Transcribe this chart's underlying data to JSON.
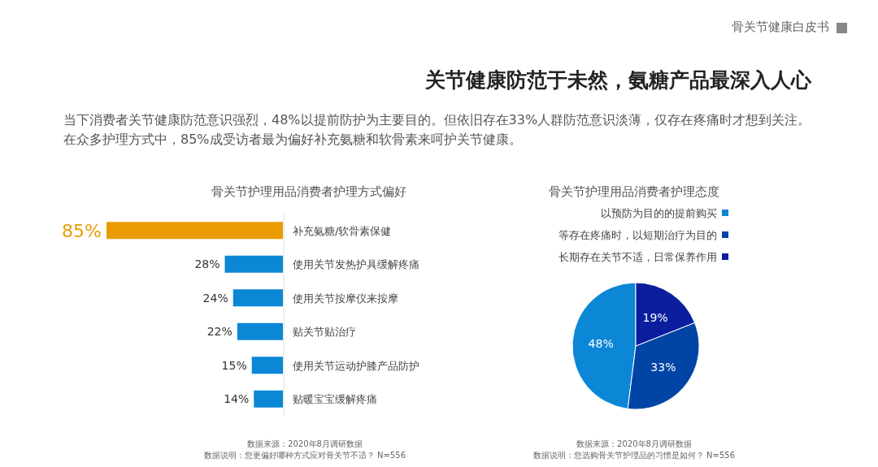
{
  "chart_data": [
    {
      "type": "other",
      "title": "关节健康防范于未然，氨糖产品最深入人心",
      "subtitle": "当下消费者关节健康防范意识强烈，48%以提前防护为主要目的。但依旧存在33%人群防范意识淡薄，仅存在疼痛时才想到关注。在众多护理方式中，85%成受访者最为偏好补充氨糖和软骨素来呵护关节健康。",
      "annotations": [
        "骨关节健康白皮书"
      ]
    },
    {
      "type": "bar",
      "orientation": "horizontal",
      "title": "骨关节护理用品消费者护理方式偏好",
      "categories": [
        "补充氨糖/软骨素保健",
        "使用关节发热护具缓解疼痛",
        "使用关节按摩仪来按摩",
        "贴关节贴治疗",
        "使用关节运动护膝产品防护",
        "贴暖宝宝缓解疼痛"
      ],
      "values": [
        85,
        28,
        24,
        22,
        15,
        14
      ],
      "colors": [
        "#e89c00",
        "#0b87d6",
        "#0b87d6",
        "#0b87d6",
        "#0b87d6",
        "#0b87d6"
      ],
      "value_labels": [
        "85%",
        "28%",
        "24%",
        "22%",
        "15%",
        "14%"
      ],
      "annotations": [
        "数据来源：2020年8月调研数据",
        "数据说明：您更偏好哪种方式应对骨关节不适？ N=556"
      ]
    },
    {
      "type": "pie",
      "title": "骨关节护理用品消费者护理态度",
      "categories": [
        "以预防为目的的提前购买",
        "等存在疼痛时，以短期治疗为目的",
        "长期存在关节不适，日常保养作用"
      ],
      "values": [
        48,
        33,
        19
      ],
      "colors": [
        "#0b87d6",
        "#0045a5",
        "#0a1e9e"
      ],
      "value_labels": [
        "48%",
        "33%",
        "19%"
      ],
      "legend": "top right",
      "annotations": [
        "数据来源：2020年8月调研数据",
        "数据说明：您选购骨关节护理品的习惯是如何？ N=556"
      ]
    }
  ]
}
